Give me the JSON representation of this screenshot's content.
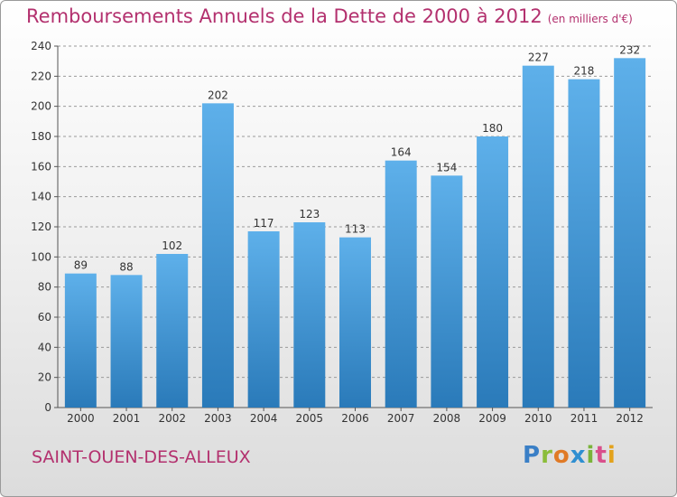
{
  "title": "Remboursements Annuels de la Dette de 2000 à 2012",
  "unit": "(en milliers d'€)",
  "commune": "SAINT-OUEN-DES-ALLEUX",
  "logo": "Proxiti",
  "colors": {
    "title": "#b3306e",
    "bar_top": "#5eb0ea",
    "bar_bottom": "#2a7ab9",
    "grid": "#9a9a9a"
  },
  "chart_data": {
    "type": "bar",
    "categories": [
      "2000",
      "2001",
      "2002",
      "2003",
      "2004",
      "2005",
      "2006",
      "2007",
      "2008",
      "2009",
      "2010",
      "2011",
      "2012"
    ],
    "values": [
      89,
      88,
      102,
      202,
      117,
      123,
      113,
      164,
      154,
      180,
      227,
      218,
      232
    ],
    "ylim": [
      0,
      240
    ],
    "yticks": [
      0,
      20,
      40,
      60,
      80,
      100,
      120,
      140,
      160,
      180,
      200,
      220,
      240
    ],
    "grid": true,
    "data_labels": true
  }
}
